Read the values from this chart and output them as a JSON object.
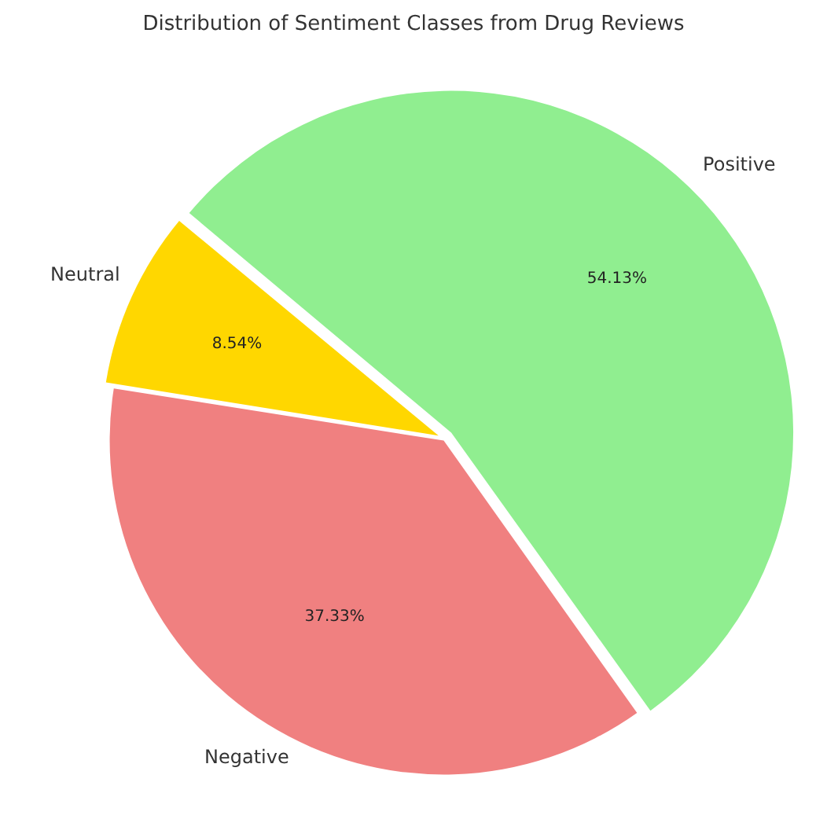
{
  "chart_data": {
    "type": "pie",
    "title": "Distribution of Sentiment Classes from Drug Reviews",
    "categories": [
      "Neutral",
      "Positive",
      "Negative"
    ],
    "values": [
      8.54,
      54.13,
      37.33
    ],
    "value_labels": [
      "8.54%",
      "54.13%",
      "37.33%"
    ],
    "colors": [
      "#ffd700",
      "#90ee90",
      "#f08080"
    ],
    "legend": false
  }
}
